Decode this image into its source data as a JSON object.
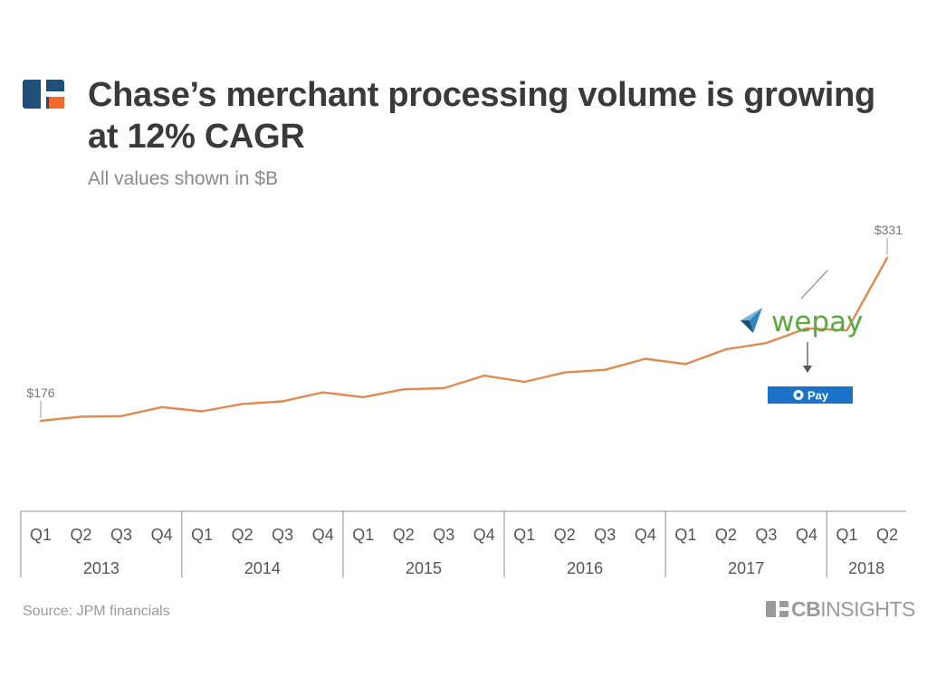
{
  "header": {
    "title": "Chase’s merchant processing volume is growing at 12% CAGR",
    "subtitle": "All values shown in $B"
  },
  "chart_data": {
    "type": "line",
    "title": "Chase’s merchant processing volume is growing at 12% CAGR",
    "subtitle": "All values shown in $B",
    "xlabel": "",
    "ylabel": "",
    "quarters": [
      "Q1",
      "Q2",
      "Q3",
      "Q4",
      "Q1",
      "Q2",
      "Q3",
      "Q4",
      "Q1",
      "Q2",
      "Q3",
      "Q4",
      "Q1",
      "Q2",
      "Q3",
      "Q4",
      "Q1",
      "Q2",
      "Q3",
      "Q4",
      "Q1",
      "Q2"
    ],
    "years": [
      {
        "label": "2013",
        "quarters": 4
      },
      {
        "label": "2014",
        "quarters": 4
      },
      {
        "label": "2015",
        "quarters": 4
      },
      {
        "label": "2016",
        "quarters": 4
      },
      {
        "label": "2017",
        "quarters": 4
      },
      {
        "label": "2018",
        "quarters": 2
      }
    ],
    "series": [
      {
        "values": [
          176,
          180,
          180.5,
          189,
          185,
          192,
          194.5,
          203,
          198.5,
          206,
          207,
          219,
          213,
          222,
          224.5,
          235,
          230,
          244,
          250,
          264,
          262,
          331
        ]
      }
    ],
    "ylim": [
      140,
      340
    ],
    "grid": false,
    "line_color": "#e08a4f",
    "annotations": [
      {
        "label": "$176",
        "index": 0
      },
      {
        "label": "$331",
        "index": 21
      }
    ]
  },
  "annotation": {
    "wepay_text": "wepay",
    "pay_text": "Pay"
  },
  "footer": {
    "source": "Source: JPM financials",
    "brand_bold": "CB",
    "brand_rest": "INSIGHTS"
  },
  "colors": {
    "line": "#e08a4f",
    "title": "#3a3a3a",
    "muted": "#8a8a8a",
    "logo_blue": "#1f4e79",
    "logo_orange": "#f26b2c",
    "wepay_green": "#5aaa3c",
    "pay_blue": "#1a73c8"
  }
}
